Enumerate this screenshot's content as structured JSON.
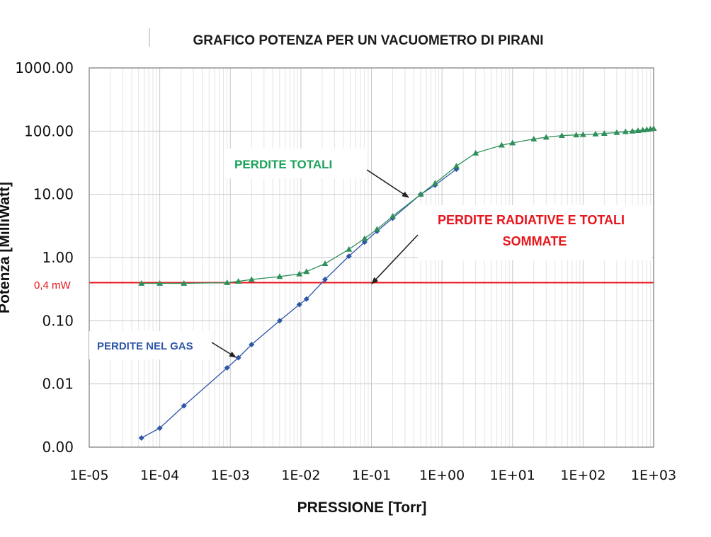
{
  "chart_data": {
    "type": "line",
    "title": "GRAFICO POTENZA PER UN VACUOMETRO DI PIRANI",
    "xlabel": "PRESSIONE [Torr]",
    "ylabel": "Potenza [MilliWatt]",
    "x_scale": "log",
    "y_scale": "log",
    "xlim": [
      1e-05,
      1000
    ],
    "ylim": [
      0.001,
      1000
    ],
    "x_ticks": [
      1e-05,
      0.0001,
      0.001,
      0.01,
      0.1,
      1,
      10,
      100,
      1000
    ],
    "x_tick_labels": [
      "1E-05",
      "1E-04",
      "1E-03",
      "1E-02",
      "1E-01",
      "1E+00",
      "1E+01",
      "1E+02",
      "1E+03"
    ],
    "y_ticks": [
      0.001,
      0.01,
      0.1,
      1,
      10,
      100,
      1000
    ],
    "y_tick_labels": [
      "0.00",
      "0.01",
      "0.10",
      "1.00",
      "10.00",
      "100.00",
      "1000.00"
    ],
    "grid": true,
    "reference_line": {
      "y": 0.4,
      "label": "0,4 mW",
      "color": "#e8141b"
    },
    "series": [
      {
        "name": "PERDITE NEL GAS",
        "color": "#2e56a8",
        "marker": "diamond",
        "x": [
          5.5e-05,
          0.0001,
          0.00022,
          0.0009,
          0.0013,
          0.002,
          0.005,
          0.0095,
          0.012,
          0.022,
          0.048,
          0.08,
          0.12,
          0.2,
          0.5,
          0.8,
          1.6
        ],
        "y": [
          0.0014,
          0.002,
          0.0045,
          0.018,
          0.026,
          0.042,
          0.1,
          0.18,
          0.22,
          0.45,
          1.05,
          1.75,
          2.6,
          4.2,
          10,
          14,
          25
        ]
      },
      {
        "name": "PERDITE TOTALI",
        "color": "#2f8f5a",
        "marker": "triangle",
        "x": [
          5.5e-05,
          0.0001,
          0.00022,
          0.0009,
          0.0013,
          0.002,
          0.005,
          0.0095,
          0.012,
          0.022,
          0.048,
          0.08,
          0.12,
          0.2,
          0.5,
          0.8,
          1.6,
          3,
          7,
          10,
          20,
          30,
          50,
          80,
          100,
          150,
          200,
          300,
          400,
          500,
          600,
          700,
          800,
          900,
          1000
        ],
        "y": [
          0.39,
          0.39,
          0.39,
          0.4,
          0.42,
          0.45,
          0.5,
          0.55,
          0.6,
          0.8,
          1.35,
          2,
          2.8,
          4.5,
          10,
          15,
          28,
          45,
          60,
          65,
          75,
          80,
          85,
          87,
          88,
          90,
          92,
          95,
          98,
          100,
          102,
          104,
          106,
          108,
          110
        ]
      }
    ],
    "annotations": [
      {
        "text": "PERDITE TOTALI",
        "color": "#1aa35a"
      },
      {
        "text": "PERDITE RADIATIVE E TOTALI",
        "color": "#e8141b"
      },
      {
        "text": "SOMMATE",
        "color": "#e8141b"
      },
      {
        "text": "PERDITE NEL GAS",
        "color": "#2e56a8"
      }
    ]
  }
}
